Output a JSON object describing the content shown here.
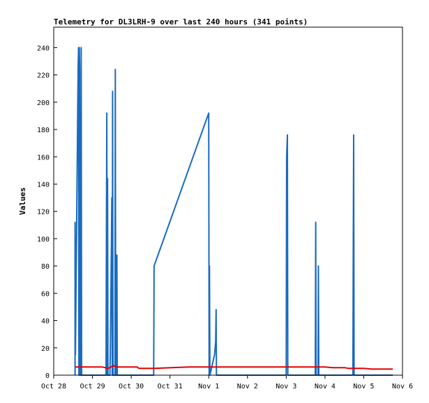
{
  "chart_data": {
    "type": "line",
    "title": "Telemetry for DL3LRH-9 over last 240 hours (341 points)",
    "xlabel": "",
    "ylabel": "Values",
    "xlim": [
      0,
      9
    ],
    "ylim": [
      0,
      255
    ],
    "grid": false,
    "legend": "none",
    "x_ticks": [
      {
        "value": 0,
        "label": "Oct 28"
      },
      {
        "value": 1,
        "label": "Oct 29"
      },
      {
        "value": 2,
        "label": "Oct 30"
      },
      {
        "value": 3,
        "label": "Oct 31"
      },
      {
        "value": 4,
        "label": "Nov 1"
      },
      {
        "value": 5,
        "label": "Nov 2"
      },
      {
        "value": 6,
        "label": "Nov 3"
      },
      {
        "value": 7,
        "label": "Nov 4"
      },
      {
        "value": 8,
        "label": "Nov 5"
      },
      {
        "value": 9,
        "label": "Nov 6"
      }
    ],
    "y_ticks": [
      0,
      20,
      40,
      60,
      80,
      100,
      120,
      140,
      160,
      180,
      200,
      220,
      240
    ],
    "series": [
      {
        "color": "#1a6bbf",
        "points": [
          [
            0.55,
            0
          ],
          [
            0.55,
            112
          ],
          [
            0.56,
            15
          ],
          [
            0.57,
            45
          ],
          [
            0.58,
            75
          ],
          [
            0.59,
            105
          ],
          [
            0.6,
            135
          ],
          [
            0.61,
            165
          ],
          [
            0.62,
            195
          ],
          [
            0.63,
            225
          ],
          [
            0.64,
            240
          ],
          [
            0.65,
            0
          ],
          [
            0.66,
            240
          ],
          [
            0.67,
            225
          ],
          [
            0.68,
            0
          ],
          [
            0.69,
            128
          ],
          [
            0.7,
            0
          ],
          [
            0.71,
            240
          ],
          [
            0.72,
            0
          ],
          [
            0.73,
            0
          ],
          [
            1.35,
            0
          ],
          [
            1.36,
            112
          ],
          [
            1.37,
            192
          ],
          [
            1.38,
            0
          ],
          [
            1.39,
            144
          ],
          [
            1.4,
            0
          ],
          [
            1.45,
            0
          ],
          [
            1.46,
            15
          ],
          [
            1.47,
            45
          ],
          [
            1.48,
            72
          ],
          [
            1.49,
            100
          ],
          [
            1.5,
            130
          ],
          [
            1.51,
            0
          ],
          [
            1.52,
            208
          ],
          [
            1.53,
            0
          ],
          [
            1.58,
            0
          ],
          [
            1.59,
            224
          ],
          [
            1.6,
            0
          ],
          [
            1.62,
            0
          ],
          [
            1.63,
            88
          ],
          [
            1.64,
            0
          ],
          [
            2.58,
            0
          ],
          [
            2.59,
            80
          ],
          [
            4.0,
            192
          ],
          [
            4.01,
            0
          ],
          [
            4.02,
            80
          ],
          [
            4.03,
            0
          ],
          [
            4.15,
            15
          ],
          [
            4.18,
            25
          ],
          [
            4.19,
            48
          ],
          [
            4.2,
            0
          ],
          [
            6.0,
            0
          ],
          [
            6.01,
            160
          ],
          [
            6.03,
            176
          ],
          [
            6.04,
            0
          ],
          [
            6.75,
            0
          ],
          [
            6.76,
            112
          ],
          [
            6.77,
            0
          ],
          [
            6.82,
            0
          ],
          [
            6.83,
            80
          ],
          [
            6.84,
            0
          ],
          [
            7.72,
            0
          ],
          [
            7.73,
            88
          ],
          [
            7.74,
            176
          ],
          [
            7.75,
            0
          ],
          [
            8.75,
            0
          ]
        ]
      },
      {
        "color": "#e00000",
        "points": [
          [
            0.55,
            6
          ],
          [
            1.25,
            6
          ],
          [
            1.4,
            5
          ],
          [
            1.55,
            7
          ],
          [
            1.6,
            6
          ],
          [
            2.15,
            6
          ],
          [
            2.2,
            5
          ],
          [
            2.6,
            5
          ],
          [
            3.5,
            6
          ],
          [
            7.0,
            6
          ],
          [
            7.2,
            5.5
          ],
          [
            7.5,
            5.5
          ],
          [
            7.6,
            5
          ],
          [
            8.0,
            5
          ],
          [
            8.2,
            4.5
          ],
          [
            8.75,
            4.5
          ]
        ]
      }
    ]
  }
}
